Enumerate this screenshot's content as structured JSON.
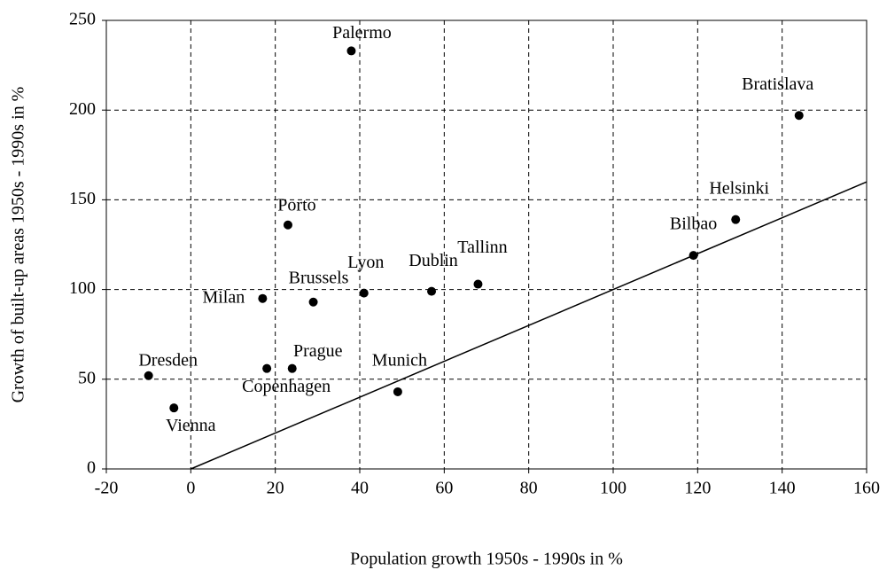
{
  "chart_data": {
    "type": "scatter",
    "x_label": "Population growth 1950s - 1990s  in  %",
    "y_label": "Growth of built-up areas 1950s - 1990s  in %",
    "labels": [
      "Palermo",
      "Bratislava",
      "Helsinki",
      "Bilbao",
      "Porto",
      "Tallinn",
      "Dublin",
      "Lyon",
      "Brussels",
      "Milan",
      "Prague",
      "Copenhagen",
      "Munich",
      "Dresden",
      "Vienna"
    ],
    "x": [
      38,
      144,
      129,
      119,
      23,
      68,
      57,
      41,
      29,
      17,
      24,
      18,
      49,
      -10,
      -4
    ],
    "y": [
      233,
      197,
      139,
      119,
      136,
      103,
      99,
      98,
      93,
      95,
      56,
      56,
      43,
      52,
      34
    ],
    "color": "#000000",
    "reference_line": {
      "x": [
        0,
        160
      ],
      "y": [
        0,
        160
      ]
    },
    "xlim": [
      -20,
      160
    ],
    "xticks": [
      -20,
      0,
      20,
      40,
      60,
      80,
      100,
      120,
      140,
      160
    ],
    "ylim": [
      0,
      250
    ],
    "yticks": [
      0,
      50,
      100,
      150,
      200,
      250
    ],
    "grid": true
  }
}
